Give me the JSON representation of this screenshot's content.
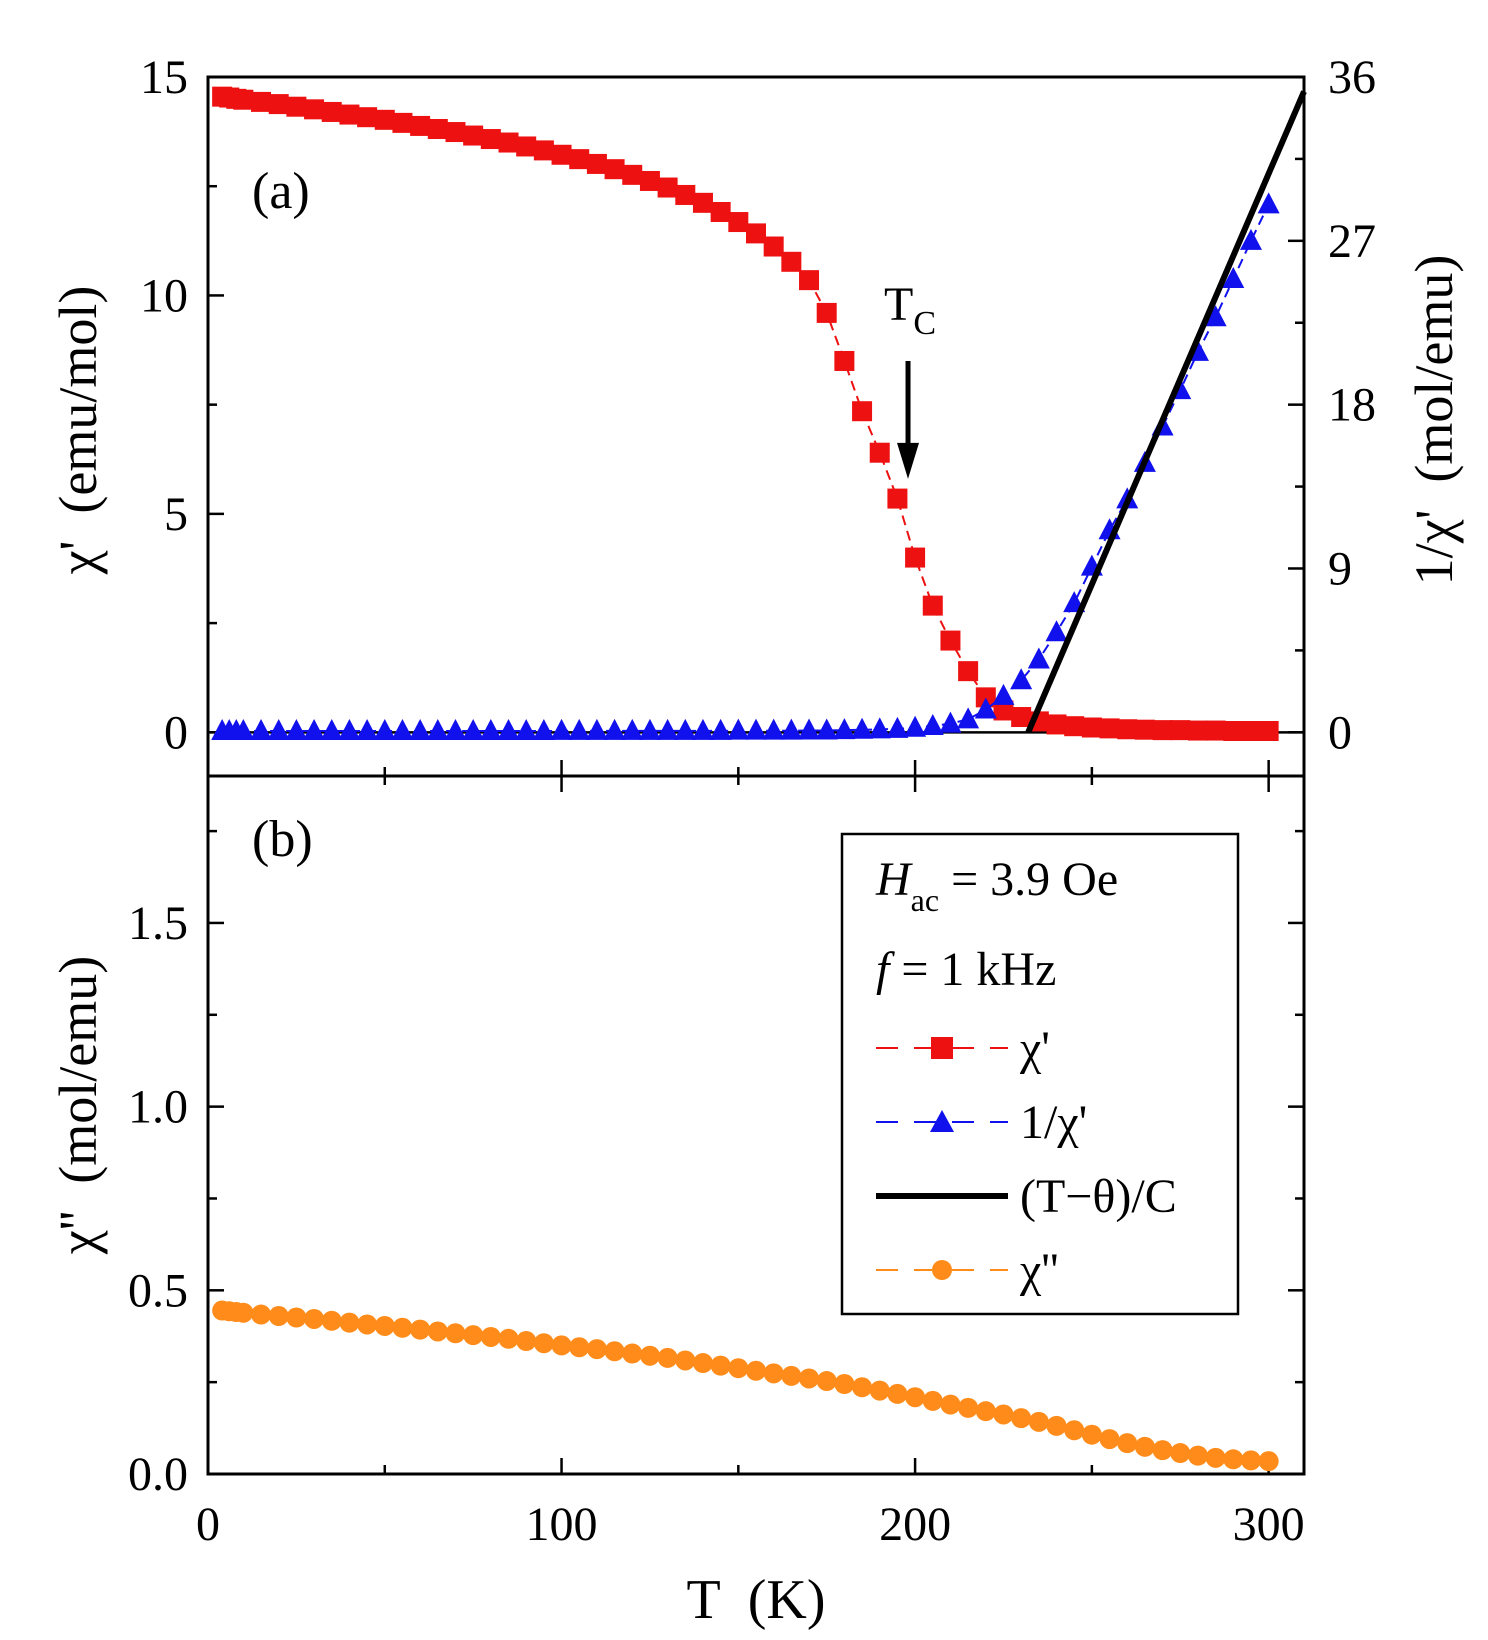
{
  "chart_data": [
    {
      "panel_label": "(a)",
      "type": "line",
      "xlabel": "T  (K)",
      "ylabel": "χ'  (emu/mol)",
      "y2label": "1/χ'  (mol/emu)",
      "xlim": [
        0,
        310
      ],
      "ylim": [
        -1,
        15
      ],
      "y2lim": [
        -2.4,
        36
      ],
      "xticks": [
        0,
        100,
        200,
        300
      ],
      "yticks": [
        0,
        5,
        10,
        15
      ],
      "y2ticks": [
        0,
        9,
        18,
        27,
        36
      ],
      "annotation": {
        "text": "T",
        "sub": "C",
        "x": 198,
        "arrow_from": 8.5,
        "arrow_to": 5.8
      },
      "series": [
        {
          "name": "χ'",
          "axis": "left",
          "color": "#ee1111",
          "marker": "square",
          "x": [
            4,
            6,
            8,
            10,
            15,
            20,
            25,
            30,
            35,
            40,
            45,
            50,
            55,
            60,
            65,
            70,
            75,
            80,
            85,
            90,
            95,
            100,
            105,
            110,
            115,
            120,
            125,
            130,
            135,
            140,
            145,
            150,
            155,
            160,
            165,
            170,
            175,
            180,
            185,
            190,
            195,
            200,
            205,
            210,
            215,
            220,
            225,
            230,
            235,
            240,
            245,
            250,
            255,
            260,
            265,
            270,
            275,
            280,
            285,
            290,
            295,
            300
          ],
          "y": [
            14.55,
            14.53,
            14.5,
            14.48,
            14.43,
            14.38,
            14.32,
            14.26,
            14.2,
            14.14,
            14.08,
            14.02,
            13.95,
            13.88,
            13.81,
            13.74,
            13.66,
            13.58,
            13.5,
            13.41,
            13.32,
            13.22,
            13.12,
            13.01,
            12.89,
            12.76,
            12.62,
            12.47,
            12.3,
            12.12,
            11.91,
            11.68,
            11.42,
            11.12,
            10.77,
            10.35,
            9.6,
            8.5,
            7.35,
            6.4,
            5.35,
            4.0,
            2.9,
            2.1,
            1.4,
            0.8,
            0.5,
            0.35,
            0.25,
            0.18,
            0.14,
            0.11,
            0.09,
            0.07,
            0.06,
            0.05,
            0.05,
            0.04,
            0.04,
            0.03,
            0.03,
            0.03
          ]
        },
        {
          "name": "1/χ'",
          "axis": "right",
          "color": "#1111ee",
          "marker": "triangle",
          "x": [
            4,
            6,
            8,
            10,
            15,
            20,
            25,
            30,
            35,
            40,
            45,
            50,
            55,
            60,
            65,
            70,
            75,
            80,
            85,
            90,
            95,
            100,
            105,
            110,
            115,
            120,
            125,
            130,
            135,
            140,
            145,
            150,
            155,
            160,
            165,
            170,
            175,
            180,
            185,
            190,
            195,
            200,
            205,
            210,
            215,
            220,
            225,
            230,
            235,
            240,
            245,
            250,
            255,
            260,
            265,
            270,
            275,
            280,
            285,
            290,
            295,
            300
          ],
          "y": [
            0.07,
            0.07,
            0.07,
            0.07,
            0.07,
            0.07,
            0.07,
            0.07,
            0.07,
            0.07,
            0.07,
            0.07,
            0.07,
            0.07,
            0.07,
            0.07,
            0.07,
            0.07,
            0.07,
            0.07,
            0.07,
            0.08,
            0.08,
            0.08,
            0.08,
            0.08,
            0.08,
            0.08,
            0.08,
            0.08,
            0.08,
            0.09,
            0.09,
            0.09,
            0.09,
            0.1,
            0.1,
            0.12,
            0.14,
            0.16,
            0.19,
            0.25,
            0.35,
            0.48,
            0.71,
            1.25,
            2.0,
            2.86,
            4.0,
            5.5,
            7.1,
            9.1,
            11.1,
            12.8,
            14.8,
            16.8,
            18.8,
            20.9,
            22.8,
            24.9,
            27.0,
            29.0
          ]
        },
        {
          "name": "(T−θ)/C",
          "axis": "right",
          "color": "#000000",
          "marker": "none",
          "x": [
            232,
            310
          ],
          "y": [
            0,
            35.2
          ]
        }
      ]
    },
    {
      "panel_label": "(b)",
      "type": "line",
      "xlabel": "T  (K)",
      "ylabel": "χ''  (mol/emu)",
      "xlim": [
        0,
        310
      ],
      "ylim": [
        0,
        1.9
      ],
      "xticks": [
        0,
        100,
        200,
        300
      ],
      "yticks": [
        0.0,
        0.5,
        1.0,
        1.5
      ],
      "ytick_labels": [
        "0.0",
        "0.5",
        "1.0",
        "1.5"
      ],
      "legend_position": "top-right",
      "legend": {
        "h_main": "H",
        "h_sub": "ac",
        "h_rest": " = 3.9 Oe",
        "f_main": "f",
        "f_rest": " = 1 kHz"
      },
      "series": [
        {
          "name": "χ''",
          "color": "#ff8c1a",
          "marker": "circle",
          "x": [
            4,
            6,
            8,
            10,
            15,
            20,
            25,
            30,
            35,
            40,
            45,
            50,
            55,
            60,
            65,
            70,
            75,
            80,
            85,
            90,
            95,
            100,
            105,
            110,
            115,
            120,
            125,
            130,
            135,
            140,
            145,
            150,
            155,
            160,
            165,
            170,
            175,
            180,
            185,
            190,
            195,
            200,
            205,
            210,
            215,
            220,
            225,
            230,
            235,
            240,
            245,
            250,
            255,
            260,
            265,
            270,
            275,
            280,
            285,
            290,
            295,
            300
          ],
          "y": [
            0.445,
            0.443,
            0.441,
            0.439,
            0.434,
            0.43,
            0.426,
            0.422,
            0.417,
            0.412,
            0.407,
            0.403,
            0.398,
            0.393,
            0.388,
            0.383,
            0.378,
            0.373,
            0.368,
            0.362,
            0.356,
            0.35,
            0.345,
            0.34,
            0.334,
            0.328,
            0.322,
            0.316,
            0.309,
            0.302,
            0.295,
            0.288,
            0.281,
            0.274,
            0.267,
            0.26,
            0.253,
            0.245,
            0.236,
            0.227,
            0.218,
            0.209,
            0.199,
            0.189,
            0.18,
            0.171,
            0.162,
            0.152,
            0.142,
            0.131,
            0.119,
            0.107,
            0.095,
            0.084,
            0.074,
            0.065,
            0.057,
            0.05,
            0.044,
            0.04,
            0.037,
            0.035
          ]
        }
      ]
    }
  ]
}
